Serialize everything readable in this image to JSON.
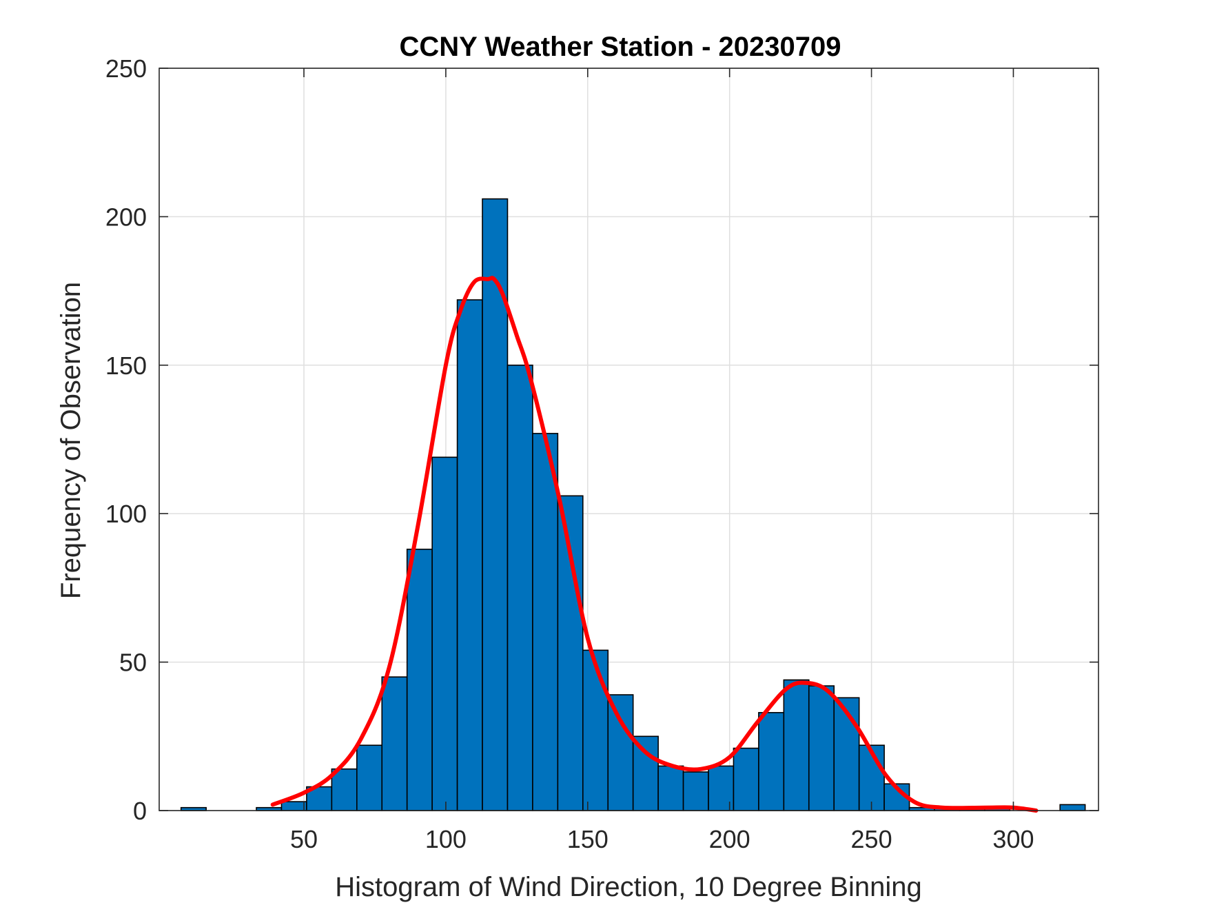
{
  "chart_data": {
    "type": "bar",
    "title": "CCNY Weather Station - 20230709",
    "xlabel": "Histogram of Wind Direction, 10 Degree Binning",
    "ylabel": "Frequency of Observation",
    "xlim": [
      -1,
      330
    ],
    "ylim": [
      0,
      250
    ],
    "xticks": [
      50,
      100,
      150,
      200,
      250,
      300
    ],
    "yticks": [
      0,
      50,
      100,
      150,
      200,
      250
    ],
    "grid": true,
    "bin_width": 8.85,
    "bins": [
      {
        "start": 6.7,
        "value": 1
      },
      {
        "start": 15.55,
        "value": 0
      },
      {
        "start": 24.4,
        "value": 0
      },
      {
        "start": 33.25,
        "value": 1
      },
      {
        "start": 42.1,
        "value": 3
      },
      {
        "start": 50.95,
        "value": 8
      },
      {
        "start": 59.8,
        "value": 14
      },
      {
        "start": 68.65,
        "value": 22
      },
      {
        "start": 77.5,
        "value": 45
      },
      {
        "start": 86.35,
        "value": 88
      },
      {
        "start": 95.2,
        "value": 119
      },
      {
        "start": 104.05,
        "value": 172
      },
      {
        "start": 112.9,
        "value": 206
      },
      {
        "start": 121.75,
        "value": 150
      },
      {
        "start": 130.6,
        "value": 127
      },
      {
        "start": 139.45,
        "value": 106
      },
      {
        "start": 148.3,
        "value": 54
      },
      {
        "start": 157.15,
        "value": 39
      },
      {
        "start": 166.0,
        "value": 25
      },
      {
        "start": 174.85,
        "value": 15
      },
      {
        "start": 183.7,
        "value": 13
      },
      {
        "start": 192.55,
        "value": 15
      },
      {
        "start": 201.4,
        "value": 21
      },
      {
        "start": 210.25,
        "value": 33
      },
      {
        "start": 219.1,
        "value": 44
      },
      {
        "start": 227.95,
        "value": 42
      },
      {
        "start": 236.8,
        "value": 38
      },
      {
        "start": 245.65,
        "value": 22
      },
      {
        "start": 254.5,
        "value": 9
      },
      {
        "start": 263.35,
        "value": 1
      },
      {
        "start": 272.2,
        "value": 1
      },
      {
        "start": 281.05,
        "value": 1
      },
      {
        "start": 289.9,
        "value": 1
      },
      {
        "start": 298.75,
        "value": 0
      },
      {
        "start": 307.6,
        "value": 0
      },
      {
        "start": 316.45,
        "value": 2
      }
    ],
    "fit_curve": {
      "x": [
        39,
        50,
        60,
        70,
        80,
        90,
        100,
        105,
        110,
        115,
        117,
        120,
        125,
        130,
        140,
        150,
        160,
        170,
        180,
        190,
        200,
        210,
        220,
        227,
        235,
        245,
        255,
        265,
        275,
        290,
        300,
        308
      ],
      "y": [
        2,
        6,
        12,
        24,
        48,
        95,
        150,
        168,
        178,
        179,
        179,
        174,
        160,
        145,
        105,
        58,
        33,
        20,
        15,
        14,
        18,
        30,
        41,
        43,
        40,
        28,
        12,
        3,
        1,
        1,
        1,
        0
      ]
    },
    "colors": {
      "bar_fill": "#0072bd",
      "bar_edge": "#000000",
      "fit_line": "#ff0000",
      "grid": "#dfdfdf",
      "axes": "#262626"
    }
  }
}
